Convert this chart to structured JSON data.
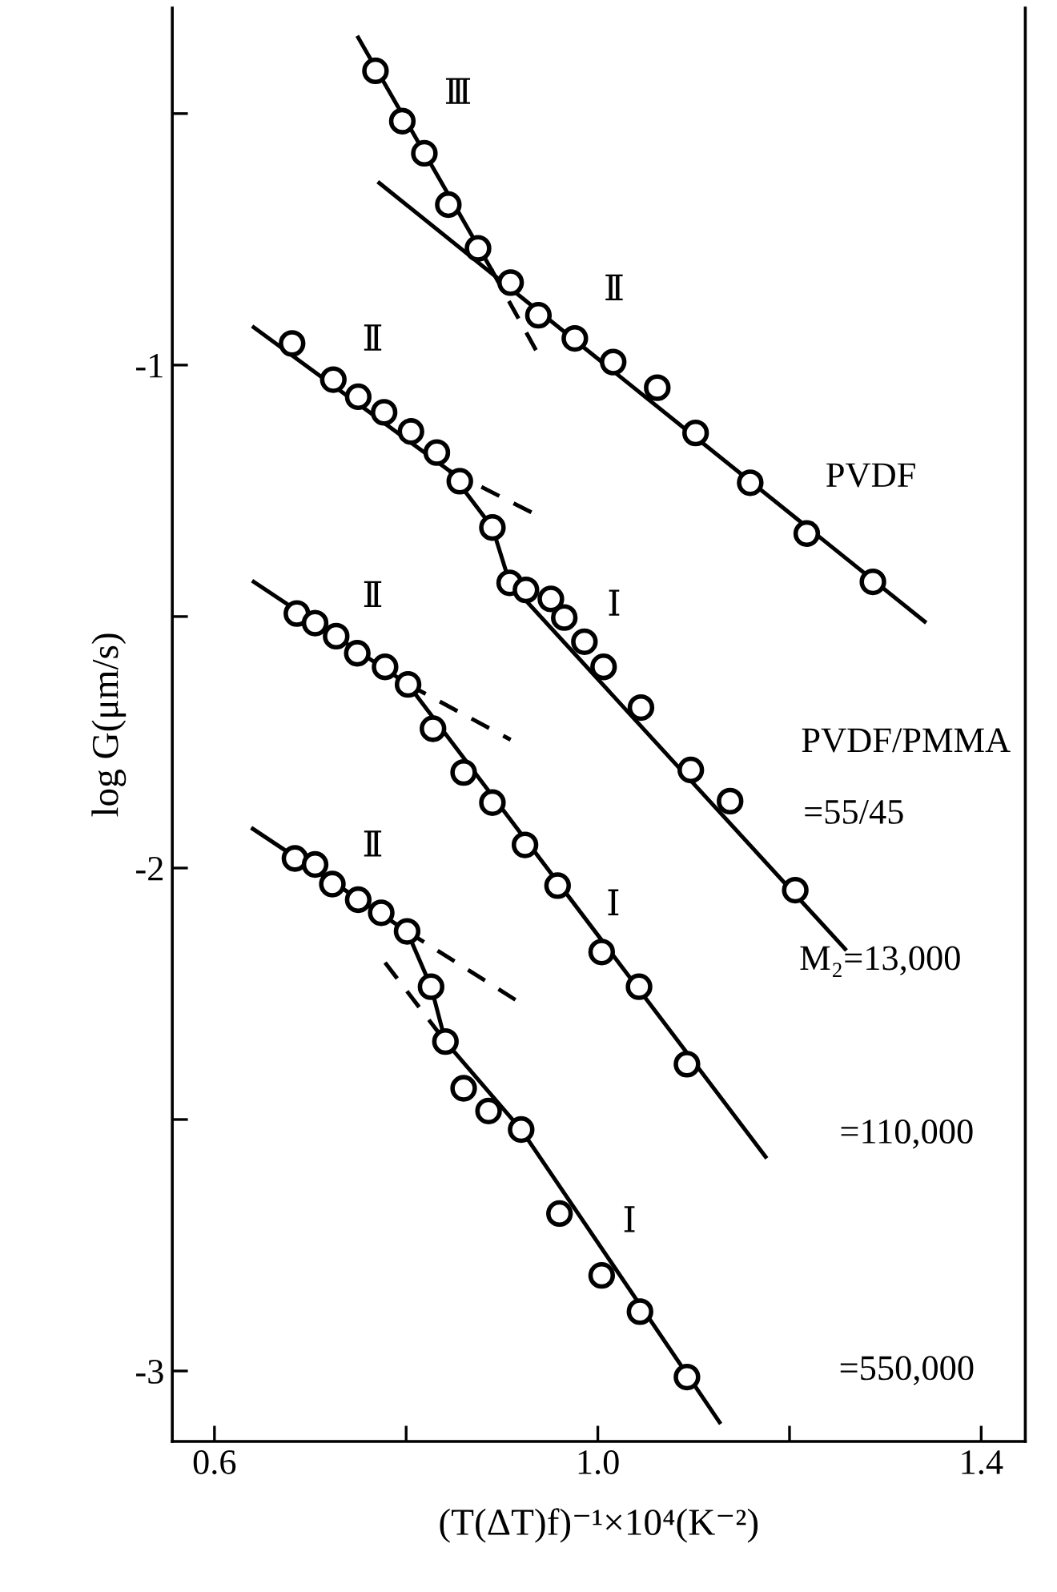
{
  "chart_data": {
    "type": "scatter",
    "xlabel": "(T(ΔT)f)⁻¹×10⁴(K⁻²)",
    "ylabel": "log G(μm/s)",
    "xlim": [
      0.556,
      1.446
    ],
    "ylim": [
      -3.14,
      -0.29
    ],
    "xticks": [
      0.6,
      {
        "value": 0.8,
        "label": null
      },
      {
        "value": 1.0,
        "label": "1.0"
      },
      {
        "value": 1.2,
        "label": null
      },
      1.4
    ],
    "yticks": [
      {
        "value": -0.5,
        "label": null
      },
      -1,
      {
        "value": -1.5,
        "label": null
      },
      -2,
      {
        "value": -2.5,
        "label": null
      },
      -3
    ],
    "grid": false,
    "legend": false,
    "marker": "circle",
    "series": [
      {
        "color": "#000000",
        "x": [
          0.768,
          0.796,
          0.819,
          0.844,
          0.875,
          0.909,
          0.938,
          0.976,
          1.016,
          1.062,
          1.102,
          1.159,
          1.218,
          1.287
        ],
        "values": [
          -0.415,
          -0.515,
          -0.579,
          -0.681,
          -0.768,
          -0.836,
          -0.901,
          -0.947,
          -0.994,
          -1.045,
          -1.135,
          -1.234,
          -1.335,
          -1.431
        ]
      },
      {
        "type": "line",
        "color": "#000000",
        "line_style": "solid",
        "marker": "none",
        "x": [
          0.75,
          0.889
        ],
        "values": [
          -0.349,
          -0.81
        ]
      },
      {
        "type": "line",
        "color": "#000000",
        "line_style": "dashed",
        "marker": "none",
        "x": [
          0.889,
          0.94
        ],
        "values": [
          -0.81,
          -0.986
        ]
      },
      {
        "type": "line",
        "color": "#000000",
        "line_style": "solid",
        "marker": "none",
        "x": [
          0.772,
          1.341
        ],
        "values": [
          -0.638,
          -1.51
        ]
      },
      {
        "color": "#000000",
        "x": [
          0.681,
          0.724,
          0.75,
          0.777,
          0.805,
          0.832,
          0.856,
          0.89,
          0.908,
          0.925,
          0.951,
          0.965,
          0.986,
          1.006,
          1.045,
          1.097,
          1.138,
          1.206
        ],
        "values": [
          -0.957,
          -1.029,
          -1.063,
          -1.094,
          -1.132,
          -1.174,
          -1.231,
          -1.323,
          -1.433,
          -1.447,
          -1.465,
          -1.502,
          -1.55,
          -1.6,
          -1.681,
          -1.805,
          -1.867,
          -2.044
        ]
      },
      {
        "type": "line",
        "color": "#000000",
        "line_style": "solid",
        "marker": "none",
        "x": [
          0.641,
          0.845,
          0.89,
          0.908,
          1.258
        ],
        "values": [
          -0.925,
          -1.21,
          -1.323,
          -1.433,
          -2.161
        ]
      },
      {
        "type": "line",
        "color": "#000000",
        "line_style": "dashed",
        "marker": "none",
        "x": [
          0.845,
          0.931
        ],
        "values": [
          -1.21,
          -1.293
        ]
      },
      {
        "color": "#000000",
        "x": [
          0.686,
          0.705,
          0.727,
          0.749,
          0.778,
          0.802,
          0.828,
          0.86,
          0.89,
          0.924,
          0.958,
          1.004,
          1.043,
          1.093
        ],
        "values": [
          -1.494,
          -1.513,
          -1.539,
          -1.573,
          -1.6,
          -1.635,
          -1.723,
          -1.81,
          -1.87,
          -1.954,
          -2.035,
          -2.167,
          -2.236,
          -2.39
        ]
      },
      {
        "type": "line",
        "color": "#000000",
        "line_style": "solid",
        "marker": "none",
        "x": [
          0.641,
          0.802,
          1.175
        ],
        "values": [
          -1.431,
          -1.635,
          -2.574
        ]
      },
      {
        "type": "line",
        "color": "#000000",
        "line_style": "dashed",
        "marker": "none",
        "x": [
          0.802,
          0.909
        ],
        "values": [
          -1.635,
          -1.745
        ]
      },
      {
        "color": "#000000",
        "x": [
          0.684,
          0.705,
          0.723,
          0.75,
          0.774,
          0.801,
          0.826,
          0.841,
          0.86,
          0.886,
          0.92,
          0.96,
          1.004,
          1.044,
          1.093
        ],
        "values": [
          -1.981,
          -1.993,
          -2.032,
          -2.063,
          -2.089,
          -2.126,
          -2.236,
          -2.345,
          -2.438,
          -2.483,
          -2.52,
          -2.687,
          -2.81,
          -2.882,
          -3.012
        ]
      },
      {
        "type": "line",
        "color": "#000000",
        "line_style": "solid",
        "marker": "none",
        "x": [
          0.64,
          0.801,
          0.826,
          0.841,
          0.92,
          1.127
        ],
        "values": [
          -1.922,
          -2.126,
          -2.236,
          -2.345,
          -2.52,
          -3.102
        ]
      },
      {
        "type": "line",
        "color": "#000000",
        "line_style": "dashed",
        "marker": "none",
        "x": [
          0.801,
          0.914
        ],
        "values": [
          -2.126,
          -2.262
        ]
      },
      {
        "type": "line",
        "color": "#000000",
        "line_style": "dashed",
        "marker": "none",
        "x": [
          0.778,
          0.841
        ],
        "values": [
          -2.188,
          -2.345
        ]
      }
    ],
    "annotations": [
      "Ⅲ",
      "Ⅱ",
      "Ⅱ",
      "Ⅰ",
      "Ⅱ",
      "Ⅰ",
      "Ⅱ",
      "Ⅰ",
      "PVDF",
      "PVDF/PMMA",
      "=55/45",
      "M₂=13,000",
      "=110,000",
      "=550,000"
    ]
  }
}
